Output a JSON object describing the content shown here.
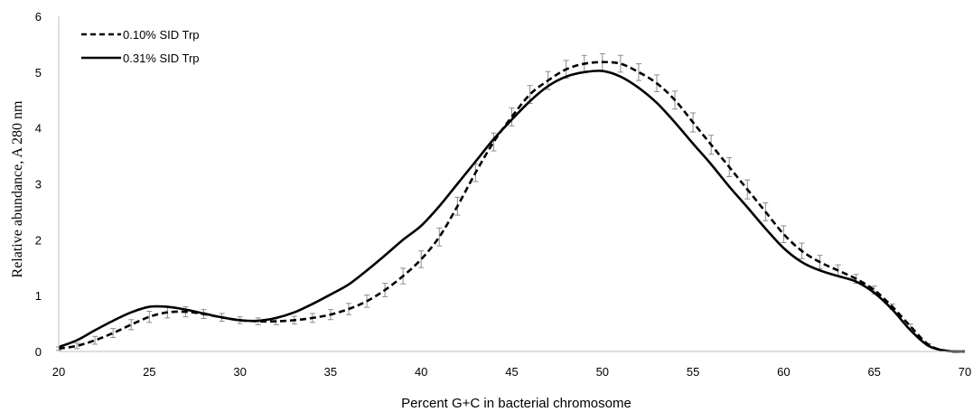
{
  "chart_data": {
    "type": "line",
    "title": "",
    "xlabel": "Percent G+C in bacterial chromosome",
    "ylabel": "Relative abundance, A 280 nm",
    "xlim": [
      20,
      70
    ],
    "ylim": [
      0,
      6
    ],
    "x_ticks": [
      20,
      25,
      30,
      35,
      40,
      45,
      50,
      55,
      60,
      65,
      70
    ],
    "y_ticks": [
      0,
      1,
      2,
      3,
      4,
      5,
      6
    ],
    "grid": false,
    "legend_position": "top-left",
    "x": [
      20,
      21,
      22,
      23,
      24,
      25,
      26,
      27,
      28,
      29,
      30,
      31,
      32,
      33,
      34,
      35,
      36,
      37,
      38,
      39,
      40,
      41,
      42,
      43,
      44,
      45,
      46,
      47,
      48,
      49,
      50,
      51,
      52,
      53,
      54,
      55,
      56,
      57,
      58,
      59,
      60,
      61,
      62,
      63,
      64,
      65,
      66,
      67,
      68,
      69,
      70
    ],
    "series": [
      {
        "name": "0.10% SID Trp",
        "style": "dashed",
        "color": "#000000",
        "values": [
          0.05,
          0.1,
          0.2,
          0.33,
          0.48,
          0.62,
          0.7,
          0.71,
          0.67,
          0.61,
          0.56,
          0.54,
          0.54,
          0.56,
          0.6,
          0.66,
          0.76,
          0.9,
          1.1,
          1.35,
          1.65,
          2.05,
          2.6,
          3.2,
          3.75,
          4.2,
          4.6,
          4.85,
          5.05,
          5.15,
          5.18,
          5.15,
          5.0,
          4.8,
          4.5,
          4.1,
          3.7,
          3.3,
          2.9,
          2.5,
          2.1,
          1.8,
          1.6,
          1.45,
          1.3,
          1.1,
          0.8,
          0.45,
          0.12,
          0.01,
          0.0
        ],
        "error": [
          0.03,
          0.05,
          0.07,
          0.08,
          0.09,
          0.1,
          0.1,
          0.09,
          0.08,
          0.07,
          0.06,
          0.06,
          0.06,
          0.07,
          0.08,
          0.09,
          0.1,
          0.11,
          0.12,
          0.14,
          0.15,
          0.16,
          0.16,
          0.16,
          0.16,
          0.16,
          0.16,
          0.16,
          0.16,
          0.15,
          0.15,
          0.15,
          0.15,
          0.15,
          0.16,
          0.17,
          0.17,
          0.17,
          0.17,
          0.16,
          0.15,
          0.14,
          0.12,
          0.1,
          0.08,
          0.07,
          0.05,
          0.04,
          0.02,
          0.01,
          0.0
        ]
      },
      {
        "name": "0.31% SID Trp",
        "style": "solid",
        "color": "#000000",
        "values": [
          0.08,
          0.2,
          0.38,
          0.55,
          0.7,
          0.8,
          0.8,
          0.75,
          0.68,
          0.61,
          0.56,
          0.55,
          0.6,
          0.7,
          0.85,
          1.02,
          1.2,
          1.45,
          1.72,
          2.0,
          2.25,
          2.6,
          3.0,
          3.4,
          3.8,
          4.15,
          4.48,
          4.75,
          4.92,
          5.0,
          5.02,
          4.92,
          4.72,
          4.45,
          4.1,
          3.72,
          3.35,
          2.95,
          2.58,
          2.2,
          1.85,
          1.6,
          1.45,
          1.35,
          1.25,
          1.05,
          0.75,
          0.38,
          0.1,
          0.01,
          0.0
        ]
      }
    ]
  },
  "legend": {
    "items": [
      {
        "label": "0.10% SID Trp",
        "style": "dashed"
      },
      {
        "label": "0.31% SID Trp",
        "style": "solid"
      }
    ]
  }
}
